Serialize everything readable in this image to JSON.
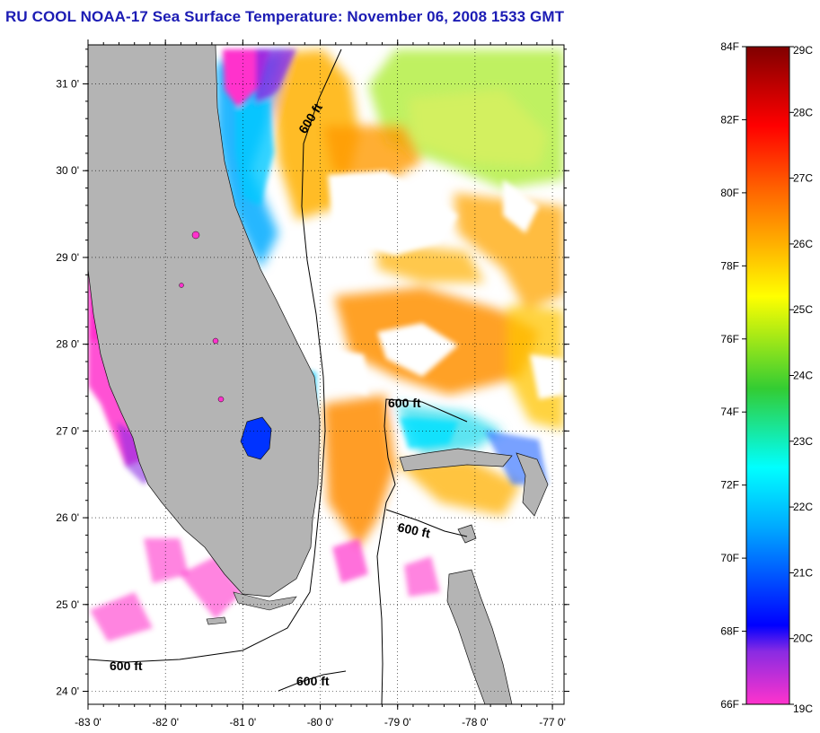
{
  "title": "RU COOL  NOAA-17  Sea Surface Temperature:  November 06, 2008 1533 GMT",
  "map": {
    "latitude_labels": [
      "31 0'",
      "30 0'",
      "29 0'",
      "28 0'",
      "27 0'",
      "26 0'",
      "25 0'",
      "24 0'"
    ],
    "longitude_labels": [
      "-83 0'",
      "-82 0'",
      "-81 0'",
      "-80 0'",
      "-79 0'",
      "-78 0'",
      "-77 0'"
    ],
    "latitude_values": [
      31,
      30,
      29,
      28,
      27,
      26,
      25,
      24
    ],
    "longitude_values": [
      -83,
      -82,
      -81,
      -80,
      -79,
      -78,
      -77
    ],
    "lat_range": [
      23.85,
      31.45
    ],
    "lon_range": [
      -83.0,
      -76.85
    ],
    "land_color": "#b4b4b4",
    "grid": "dotted",
    "contour_labels": [
      "600 ft",
      "600 ft",
      "600 ft",
      "600 ft",
      "600 ft"
    ]
  },
  "colorbar": {
    "fahrenheit_labels": [
      "84F",
      "82F",
      "80F",
      "78F",
      "76F",
      "74F",
      "72F",
      "70F",
      "68F",
      "66F"
    ],
    "celsius_labels": [
      "29C",
      "28C",
      "27C",
      "26C",
      "25C",
      "24C",
      "23C",
      "22C",
      "21C",
      "20C",
      "19C"
    ],
    "fahrenheit_range": [
      66,
      84
    ],
    "celsius_range": [
      19,
      29
    ],
    "colors_bottom_to_top": [
      "#ff33cc",
      "#8a2be2",
      "#0000ff",
      "#00aaff",
      "#00ffff",
      "#33cc33",
      "#ffff00",
      "#ffb000",
      "#ff6600",
      "#ff0000",
      "#800000"
    ]
  }
}
